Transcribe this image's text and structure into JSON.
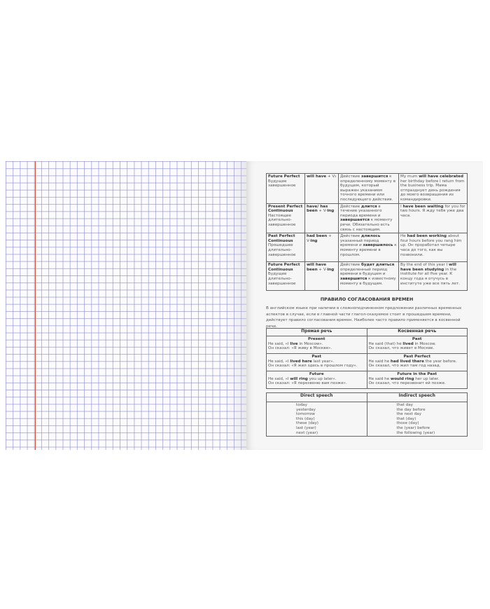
{
  "tenses_table": [
    {
      "name": "Future Perfect",
      "name_ru": "Будущее завершенное",
      "form": [
        {
          "t": "will have",
          "b": true
        },
        {
          "t": " + V₃"
        }
      ],
      "desc": [
        {
          "t": "Действие "
        },
        {
          "t": "завершится",
          "b": true
        },
        {
          "t": " к определенному моменту в будущем, который выражен указанием точного времени или последующего действия."
        }
      ],
      "example": [
        {
          "t": "My mum "
        },
        {
          "t": "will have celebrated",
          "b": true
        },
        {
          "t": " her birthday before I return from the business trip. Мама отпразднует день рождения до моего возвращения из командировки."
        }
      ]
    },
    {
      "name": "Present Perfect Continuous",
      "name_ru": "Настоящее длительно-завершенное",
      "form": [
        {
          "t": "have/ has been",
          "b": true
        },
        {
          "t": " + V-"
        },
        {
          "t": "ing",
          "b": true
        }
      ],
      "desc": [
        {
          "t": "Действие "
        },
        {
          "t": "длится",
          "b": true
        },
        {
          "t": " в течение указанного периода времени и "
        },
        {
          "t": "завершается",
          "b": true
        },
        {
          "t": " к моменту речи. Обязательно есть связь с настоящим."
        }
      ],
      "example": [
        {
          "t": "I "
        },
        {
          "t": "have been waiting",
          "b": true
        },
        {
          "t": " for you for two hours. Я жду тебя уже два часа."
        }
      ]
    },
    {
      "name": "Past Perfect Continuous",
      "name_ru": "Прошедшее длительно-завершенное",
      "form": [
        {
          "t": "had been",
          "b": true
        },
        {
          "t": " + V-"
        },
        {
          "t": "ing",
          "b": true
        }
      ],
      "desc": [
        {
          "t": "Действие "
        },
        {
          "t": "длилось",
          "b": true
        },
        {
          "t": " указанный период времени и "
        },
        {
          "t": "завершилось",
          "b": true
        },
        {
          "t": " к моменту времени в прошлом."
        }
      ],
      "example": [
        {
          "t": "He "
        },
        {
          "t": "had been working",
          "b": true
        },
        {
          "t": " about four hours before you rang him up. Он проработал четыре часа до того, как вы позвонили."
        }
      ]
    },
    {
      "name": "Future Perfect Continuous",
      "name_ru": "Будущее длительно-завершенное",
      "form": [
        {
          "t": "will have been",
          "b": true
        },
        {
          "t": " + V-"
        },
        {
          "t": "ing",
          "b": true
        }
      ],
      "desc": [
        {
          "t": "Действие "
        },
        {
          "t": "будет длиться",
          "b": true
        },
        {
          "t": " определенный период времени в будущем и "
        },
        {
          "t": "завершится",
          "b": true
        },
        {
          "t": " к известному моменту в будущем."
        }
      ],
      "example": [
        {
          "t": "By the end of this year I "
        },
        {
          "t": "will have been studying",
          "b": true
        },
        {
          "t": " in the institute for all five year. К концу года я отучусь в институте уже все пять лет."
        }
      ]
    }
  ],
  "section": {
    "heading": "ПРАВИЛО СОГЛАСОВАНИЯ ВРЕМЕН",
    "paragraph": "В английском языке при наличии в сложноподчиненном предложении различных временных аспектов в случае, если в главной части глагол-сказуемое стоит в прошедшем времени, действует правило согласования времен. Наиболее часто правило применяется в косвенной речи."
  },
  "speech_table": {
    "headers": [
      "Прямая речь",
      "Косвенная речь"
    ],
    "rows": [
      {
        "direct_tense": "Present",
        "direct": [
          {
            "t": "He said, «I "
          },
          {
            "t": "live",
            "b": true
          },
          {
            "t": " in Moscow»."
          }
        ],
        "direct_ru": "Он сказал: «Я живу в Москве».",
        "indirect_tense": "Past",
        "indirect": [
          {
            "t": "He said (that) he "
          },
          {
            "t": "lived",
            "b": true
          },
          {
            "t": " in Moscow."
          }
        ],
        "indirect_ru": "Он сказал, что живет в Москве."
      },
      {
        "direct_tense": "Past",
        "direct": [
          {
            "t": "He said, «I "
          },
          {
            "t": "lived here",
            "b": true
          },
          {
            "t": " last year»."
          }
        ],
        "direct_ru": "Он сказал: «Я жил здесь в прошлом году».",
        "indirect_tense": "Past Perfect",
        "indirect": [
          {
            "t": "He said he "
          },
          {
            "t": "had lived there",
            "b": true
          },
          {
            "t": " the year before."
          }
        ],
        "indirect_ru": "Он сказал, что жил там год назад."
      },
      {
        "direct_tense": "Future",
        "direct": [
          {
            "t": "He said, «I "
          },
          {
            "t": "will ring",
            "b": true
          },
          {
            "t": " you up later»."
          }
        ],
        "direct_ru": "Он сказал: «Я перезвоню вам позже».",
        "indirect_tense": "Future in the Past",
        "indirect": [
          {
            "t": "He said he "
          },
          {
            "t": "would ring",
            "b": true
          },
          {
            "t": " her up later."
          }
        ],
        "indirect_ru": "Он сказал, что перезвонит ей позже."
      }
    ]
  },
  "words_table": {
    "headers": [
      "Direct speech",
      "Indirect speech"
    ],
    "direct": [
      "today",
      "yesterday",
      "tomorrow",
      "this (day)",
      "these (day)",
      "last (year)",
      "next (year)"
    ],
    "indirect": [
      "that day",
      "the day before",
      "the next day",
      "that (day)",
      "those (day)",
      "the (year) before",
      "the following (year)"
    ]
  },
  "colors": {
    "grid": "#8c8cd0",
    "margin": "#d2553a",
    "page": "#f6f6f6"
  }
}
